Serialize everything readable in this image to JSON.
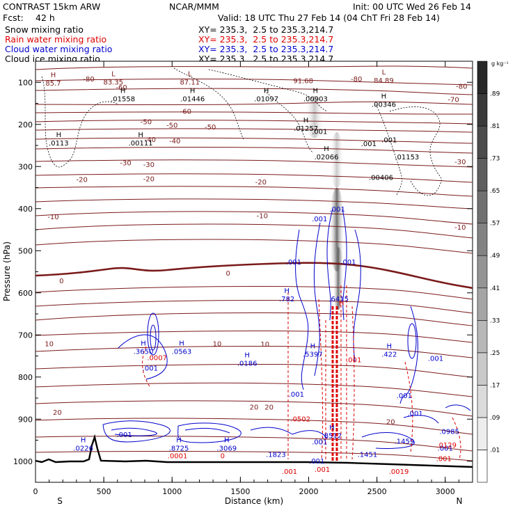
{
  "header": {
    "model": "CONTRAST 15km ARW",
    "org": "NCAR/MMM",
    "init": "Init: 00 UTC Wed 26 Feb 14",
    "fcst_label": "Fcst:",
    "fcst_value": "42 h",
    "valid": "Valid: 18 UTC Thu 27 Feb 14 (04 ChT Fri 28 Feb 14)"
  },
  "legend": [
    {
      "name": "Snow mixing ratio",
      "xy": "XY= 235.3,  2.5 to 235.3,214.7",
      "color": "#000000"
    },
    {
      "name": "Rain water mixing ratio",
      "xy": "XY= 235.3,  2.5 to 235.3,214.7",
      "color": "#dd0000"
    },
    {
      "name": "Cloud water mixing ratio",
      "xy": "XY= 235.3,  2.5 to 235.3,214.7",
      "color": "#0000cc"
    },
    {
      "name": "Cloud ice mixing ratio",
      "xy": "XY= 235.3,  2.5 to 235.3,214.7",
      "color": "#000000"
    }
  ],
  "colors": {
    "temperature": "#7a1a1a",
    "rain": "#dd0000",
    "cloud_water": "#0000cc",
    "cloud_ice": "#000000",
    "terrain": "#000000"
  },
  "chart_data": {
    "type": "cross-section contour",
    "xlabel": "Distance (km)",
    "ylabel": "Pressure (hPa)",
    "xlim": [
      0,
      3200
    ],
    "ylim": [
      1050,
      50
    ],
    "x_ticks": [
      "0",
      "500",
      "1000",
      "1500",
      "2000",
      "2500",
      "3000"
    ],
    "y_ticks": [
      "100",
      "200",
      "300",
      "400",
      "500",
      "600",
      "700",
      "800",
      "900",
      "1000"
    ],
    "x_end_labels": {
      "left": "S",
      "right": "N"
    },
    "colorbar": {
      "unit": "g kg⁻¹",
      "ticks": [
        ".01",
        ".09",
        ".17",
        ".25",
        ".33",
        ".41",
        ".49",
        ".57",
        ".65",
        ".73",
        ".81",
        ".89"
      ]
    },
    "temperature_labels": [
      {
        "x": 390,
        "p": 93,
        "t": "-80"
      },
      {
        "x": 2350,
        "p": 93,
        "t": "-80"
      },
      {
        "x": 3120,
        "p": 110,
        "t": "-80"
      },
      {
        "x": 3060,
        "p": 142,
        "t": "-70"
      },
      {
        "x": 630,
        "p": 113,
        "t": "-60"
      },
      {
        "x": 1100,
        "p": 170,
        "t": "-60"
      },
      {
        "x": 810,
        "p": 195,
        "t": "-50"
      },
      {
        "x": 1000,
        "p": 203,
        "t": "-50"
      },
      {
        "x": 1280,
        "p": 207,
        "t": "-50"
      },
      {
        "x": 840,
        "p": 237,
        "t": "-40"
      },
      {
        "x": 1020,
        "p": 240,
        "t": "-40"
      },
      {
        "x": 660,
        "p": 292,
        "t": "-30"
      },
      {
        "x": 830,
        "p": 296,
        "t": "-30"
      },
      {
        "x": 3110,
        "p": 290,
        "t": "-30"
      },
      {
        "x": 340,
        "p": 332,
        "t": "-20"
      },
      {
        "x": 830,
        "p": 330,
        "t": "-20"
      },
      {
        "x": 1650,
        "p": 338,
        "t": "-20"
      },
      {
        "x": 130,
        "p": 420,
        "t": "-10"
      },
      {
        "x": 1660,
        "p": 418,
        "t": "-10"
      },
      {
        "x": 3110,
        "p": 445,
        "t": "-10"
      },
      {
        "x": 190,
        "p": 572,
        "t": "0"
      },
      {
        "x": 1410,
        "p": 554,
        "t": "0"
      },
      {
        "x": 100,
        "p": 722,
        "t": "10"
      },
      {
        "x": 1330,
        "p": 722,
        "t": "10"
      },
      {
        "x": 1680,
        "p": 723,
        "t": "10"
      },
      {
        "x": 160,
        "p": 885,
        "t": "20"
      },
      {
        "x": 1600,
        "p": 872,
        "t": "20"
      },
      {
        "x": 1710,
        "p": 872,
        "t": "20"
      },
      {
        "x": 2600,
        "p": 907,
        "t": "20"
      }
    ],
    "snow_maxima": [
      {
        "x": 130,
        "p": 103,
        "label": "H",
        "v": "85.7",
        "type": "low"
      },
      {
        "x": 570,
        "p": 100,
        "label": "L",
        "v": "83.35",
        "type": "low"
      },
      {
        "x": 1130,
        "p": 100,
        "label": "L",
        "v": "87.11",
        "type": "low"
      },
      {
        "x": 1960,
        "p": 97,
        "label": "",
        "v": "91.68",
        "type": "low"
      },
      {
        "x": 2550,
        "p": 96,
        "label": "L",
        "v": "84.89",
        "type": "low"
      },
      {
        "x": 640,
        "p": 140,
        "label": "H",
        "v": ".01558",
        "type": "high"
      },
      {
        "x": 1150,
        "p": 140,
        "label": "H",
        "v": ".01446",
        "type": "high"
      },
      {
        "x": 1690,
        "p": 140,
        "label": "H",
        "v": ".01097",
        "type": "high"
      },
      {
        "x": 2050,
        "p": 140,
        "label": "H",
        "v": ".00903",
        "type": "high"
      },
      {
        "x": 2550,
        "p": 153,
        "label": "H",
        "v": ".00346",
        "type": "high"
      },
      {
        "x": 170,
        "p": 245,
        "label": "H",
        "v": ".0113",
        "type": "high"
      },
      {
        "x": 770,
        "p": 245,
        "label": "H",
        "v": ".00111",
        "type": "high"
      },
      {
        "x": 1980,
        "p": 210,
        "label": "H",
        "v": ".01257",
        "type": "high"
      },
      {
        "x": 2130,
        "p": 278,
        "label": "H",
        "v": ".02066",
        "type": "high"
      },
      {
        "x": 2720,
        "p": 278,
        "label": "",
        "v": ".01153",
        "type": "high"
      },
      {
        "x": 2530,
        "p": 327,
        "label": "",
        "v": ".00406",
        "type": "high"
      }
    ],
    "cloud_water_maxima": [
      {
        "x": 790,
        "p": 740,
        "label": "H",
        "v": ".3650"
      },
      {
        "x": 1070,
        "p": 740,
        "label": "H",
        "v": ".0563"
      },
      {
        "x": 1550,
        "p": 768,
        "label": "H",
        "v": ".0186"
      },
      {
        "x": 1840,
        "p": 615,
        "label": "H",
        "v": ".782"
      },
      {
        "x": 2030,
        "p": 747,
        "label": "H",
        "v": ".5397"
      },
      {
        "x": 2220,
        "p": 615,
        "label": "",
        "v": ".6415"
      },
      {
        "x": 2590,
        "p": 747,
        "label": "H",
        "v": ".422"
      },
      {
        "x": 350,
        "p": 970,
        "label": "H",
        "v": ".0226"
      },
      {
        "x": 1050,
        "p": 970,
        "label": "H",
        "v": ".8725"
      },
      {
        "x": 1400,
        "p": 970,
        "label": "H",
        "v": ".3069"
      },
      {
        "x": 1760,
        "p": 985,
        "label": "",
        "v": ".1823"
      },
      {
        "x": 2170,
        "p": 940,
        "label": "H",
        "v": ".8512"
      },
      {
        "x": 2430,
        "p": 985,
        "label": "",
        "v": ".1451"
      },
      {
        "x": 2700,
        "p": 953,
        "label": "",
        "v": ".1459"
      },
      {
        "x": 3030,
        "p": 930,
        "label": "",
        "v": ".0985"
      }
    ],
    "small_values": [
      {
        "x": 2210,
        "p": 402,
        "v": ".001",
        "c": "cloud_water"
      },
      {
        "x": 2080,
        "p": 425,
        "v": ".001",
        "c": "cloud_water"
      },
      {
        "x": 1890,
        "p": 528,
        "v": ".001",
        "c": "cloud_water"
      },
      {
        "x": 2290,
        "p": 528,
        "v": ".001",
        "c": "cloud_water"
      },
      {
        "x": 840,
        "p": 780,
        "v": ".001",
        "c": "cloud_water"
      },
      {
        "x": 1910,
        "p": 842,
        "v": ".001",
        "c": "cloud_water"
      },
      {
        "x": 2780,
        "p": 887,
        "v": ".001",
        "c": "cloud_water"
      },
      {
        "x": 2930,
        "p": 757,
        "v": ".001",
        "c": "cloud_water"
      },
      {
        "x": 2700,
        "p": 845,
        "v": ".001",
        "c": "cloud_water"
      },
      {
        "x": 650,
        "p": 938,
        "v": ".001",
        "c": "cloud_water"
      },
      {
        "x": 2080,
        "p": 955,
        "v": ".001",
        "c": "cloud_water"
      },
      {
        "x": 2060,
        "p": 1000,
        "v": ".001",
        "c": "cloud_water"
      },
      {
        "x": 3000,
        "p": 970,
        "v": ".001",
        "c": "cloud_water"
      },
      {
        "x": 2080,
        "p": 218,
        "v": ".001",
        "c": "snow"
      },
      {
        "x": 2440,
        "p": 247,
        "v": ".001",
        "c": "snow"
      },
      {
        "x": 2590,
        "p": 238,
        "v": ".001",
        "c": "snow"
      },
      {
        "x": 890,
        "p": 755,
        "v": ".0007",
        "c": "rain"
      },
      {
        "x": 1940,
        "p": 900,
        "v": ".0502",
        "c": "rain"
      },
      {
        "x": 2330,
        "p": 760,
        "v": ".001",
        "c": "rain"
      },
      {
        "x": 2100,
        "p": 1020,
        "v": ".001",
        "c": "rain"
      },
      {
        "x": 1860,
        "p": 1025,
        "v": ".001",
        "c": "rain"
      },
      {
        "x": 2660,
        "p": 1025,
        "v": ".0019",
        "c": "rain"
      },
      {
        "x": 1040,
        "p": 988,
        "v": ".0001",
        "c": "rain"
      },
      {
        "x": 2990,
        "p": 995,
        "v": ".001",
        "c": "rain"
      },
      {
        "x": 3010,
        "p": 962,
        "v": ".0129",
        "c": "rain"
      },
      {
        "x": 2240,
        "p": 625,
        "v": "H",
        "c": "rain"
      },
      {
        "x": 1370,
        "p": 988,
        "v": "0",
        "c": "rain"
      }
    ]
  }
}
